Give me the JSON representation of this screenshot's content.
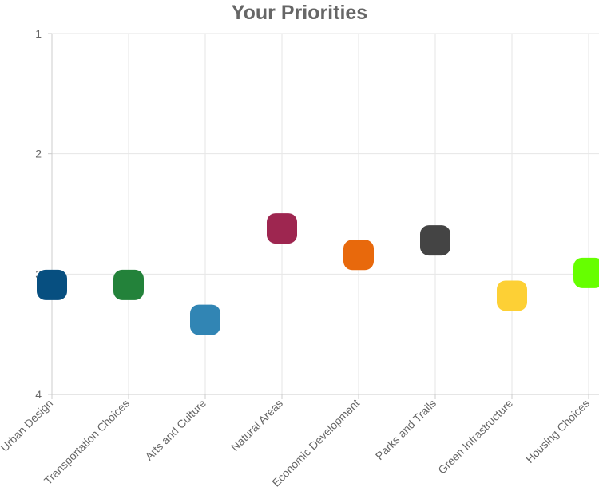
{
  "chart_data": {
    "type": "scatter",
    "title": "Your Priorities",
    "xlabel": "",
    "ylabel": "",
    "categories": [
      "Urban Design",
      "Transportation Choices",
      "Arts and Culture",
      "Natural Areas",
      "Economic Development",
      "Parks and Trails",
      "Green Infrastructure",
      "Housing Choices"
    ],
    "values": [
      3.09,
      3.09,
      3.38,
      2.62,
      2.84,
      2.72,
      3.18,
      2.99
    ],
    "colors": [
      "#074f80",
      "#23823a",
      "#3185b4",
      "#9e2650",
      "#e8690c",
      "#444444",
      "#fdd035",
      "#66ff00"
    ],
    "marker": "rounded-square",
    "ylim": [
      1,
      4
    ],
    "y_reversed": true,
    "yticks": [
      "1",
      "2",
      "3",
      "4"
    ],
    "grid": true,
    "legend": "none"
  }
}
